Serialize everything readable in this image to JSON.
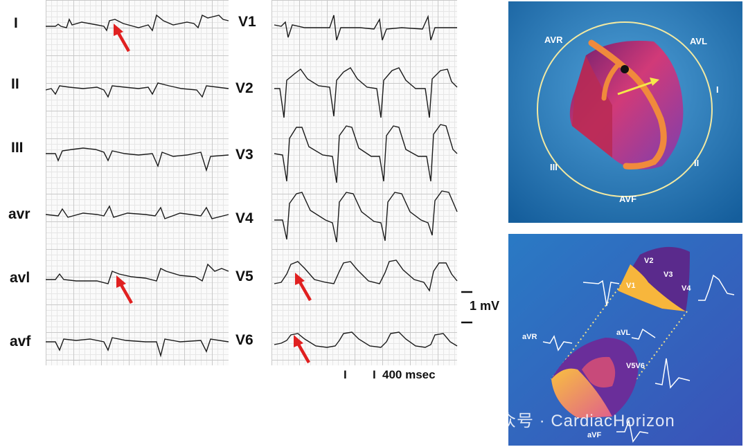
{
  "limb_leads": {
    "labels": [
      "I",
      "II",
      "III",
      "avr",
      "avl",
      "avf"
    ]
  },
  "chest_leads": {
    "labels": [
      "V1",
      "V2",
      "V3",
      "V4",
      "V5",
      "V6"
    ]
  },
  "calibration": {
    "voltage": "1 mV",
    "time": "400 msec",
    "tick": "I"
  },
  "top_illustration": {
    "labels": {
      "avr": "AVR",
      "avl": "AVL",
      "i": "I",
      "ii": "II",
      "iii": "III",
      "avf": "AVF"
    },
    "colors": {
      "background": "#1a6aa0",
      "circle": "#f2e9a2",
      "heart": "#c2306a",
      "arrow": "#f5e84a"
    }
  },
  "bottom_illustration": {
    "labels": {
      "v1": "V1",
      "v2": "V2",
      "v3": "V3",
      "v4": "V4",
      "v5v6": "V5V6",
      "avr": "aVR",
      "avl": "aVL",
      "avf": "aVF"
    },
    "colors": {
      "background": "#2b6cc0",
      "top_slice": "#5e2a8a",
      "fill": "#f7b63c"
    }
  },
  "watermark": {
    "text": "公众号 · CardiacHorizon"
  },
  "annotations": {
    "arrow_color": "#e02020"
  }
}
